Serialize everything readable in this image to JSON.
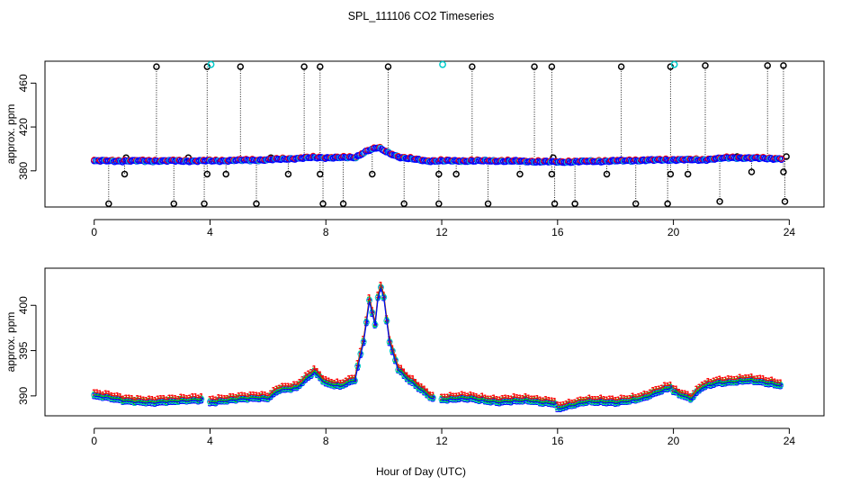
{
  "chart_data": [
    {
      "type": "scatter",
      "title": "SPL_111106  CO2 Timeseries",
      "ylabel": "approx. ppm",
      "xlabel": "",
      "xlim": [
        -1.7,
        25.2
      ],
      "ylim": [
        347,
        480
      ],
      "x_ticks": [
        0,
        4,
        8,
        12,
        16,
        20,
        24
      ],
      "y_ticks": [
        380,
        420,
        460
      ],
      "baseline": [
        {
          "x": 0.0,
          "y": 389
        },
        {
          "x": 2.0,
          "y": 389
        },
        {
          "x": 4.0,
          "y": 389
        },
        {
          "x": 6.0,
          "y": 390
        },
        {
          "x": 7.5,
          "y": 392
        },
        {
          "x": 9.0,
          "y": 392
        },
        {
          "x": 9.4,
          "y": 398
        },
        {
          "x": 9.8,
          "y": 401
        },
        {
          "x": 10.2,
          "y": 396
        },
        {
          "x": 10.6,
          "y": 392
        },
        {
          "x": 11.5,
          "y": 389
        },
        {
          "x": 14.0,
          "y": 389
        },
        {
          "x": 16.0,
          "y": 388
        },
        {
          "x": 18.0,
          "y": 389
        },
        {
          "x": 19.8,
          "y": 390
        },
        {
          "x": 21.0,
          "y": 390
        },
        {
          "x": 22.0,
          "y": 392
        },
        {
          "x": 23.7,
          "y": 391
        }
      ],
      "spikes": [
        {
          "x": 2.15,
          "y": 475
        },
        {
          "x": 3.9,
          "y": 475
        },
        {
          "x": 5.05,
          "y": 475
        },
        {
          "x": 7.25,
          "y": 475
        },
        {
          "x": 7.8,
          "y": 475
        },
        {
          "x": 10.15,
          "y": 475
        },
        {
          "x": 13.05,
          "y": 475
        },
        {
          "x": 15.2,
          "y": 475
        },
        {
          "x": 15.8,
          "y": 475
        },
        {
          "x": 18.2,
          "y": 475
        },
        {
          "x": 19.9,
          "y": 475
        },
        {
          "x": 21.1,
          "y": 476
        },
        {
          "x": 23.25,
          "y": 476
        },
        {
          "x": 23.8,
          "y": 476
        },
        {
          "x": 0.5,
          "y": 350
        },
        {
          "x": 2.75,
          "y": 350
        },
        {
          "x": 3.8,
          "y": 350
        },
        {
          "x": 5.6,
          "y": 350
        },
        {
          "x": 7.9,
          "y": 350
        },
        {
          "x": 8.6,
          "y": 350
        },
        {
          "x": 10.7,
          "y": 350
        },
        {
          "x": 11.9,
          "y": 350
        },
        {
          "x": 13.6,
          "y": 350
        },
        {
          "x": 15.9,
          "y": 350
        },
        {
          "x": 16.6,
          "y": 350
        },
        {
          "x": 18.7,
          "y": 350
        },
        {
          "x": 19.8,
          "y": 350
        },
        {
          "x": 21.6,
          "y": 352
        },
        {
          "x": 23.85,
          "y": 352
        },
        {
          "x": 1.05,
          "y": 377
        },
        {
          "x": 3.9,
          "y": 377
        },
        {
          "x": 4.55,
          "y": 377
        },
        {
          "x": 6.7,
          "y": 377
        },
        {
          "x": 7.8,
          "y": 377
        },
        {
          "x": 9.6,
          "y": 377
        },
        {
          "x": 11.9,
          "y": 377
        },
        {
          "x": 12.5,
          "y": 377
        },
        {
          "x": 14.7,
          "y": 377
        },
        {
          "x": 15.8,
          "y": 377
        },
        {
          "x": 17.7,
          "y": 377
        },
        {
          "x": 19.9,
          "y": 377
        },
        {
          "x": 20.5,
          "y": 377
        },
        {
          "x": 22.7,
          "y": 379
        },
        {
          "x": 23.8,
          "y": 379
        },
        {
          "x": 1.1,
          "y": 392
        },
        {
          "x": 3.25,
          "y": 392
        },
        {
          "x": 6.1,
          "y": 392
        },
        {
          "x": 15.85,
          "y": 392
        },
        {
          "x": 22.2,
          "y": 393
        },
        {
          "x": 23.9,
          "y": 393
        }
      ],
      "cyan_markers": [
        {
          "x": 4.0,
          "y": 477
        },
        {
          "x": 12.0,
          "y": 477
        },
        {
          "x": 20.0,
          "y": 477
        }
      ]
    },
    {
      "type": "scatter",
      "ylabel": "approx. ppm",
      "xlabel": "Hour of Day (UTC)",
      "xlim": [
        -1.7,
        25.2
      ],
      "ylim": [
        387.8,
        404.1
      ],
      "x_ticks": [
        0,
        4,
        8,
        12,
        16,
        20,
        24
      ],
      "y_ticks": [
        390,
        395,
        400
      ],
      "series_markers": [
        "1",
        "2",
        "3"
      ],
      "series_colors": [
        "#ff0000",
        "#00cc00",
        "#0000ff"
      ],
      "segments": [
        {
          "start": 0.0,
          "end": 3.7,
          "points": [
            {
              "x": 0.0,
              "y": 390.1
            },
            {
              "x": 1.0,
              "y": 389.6
            },
            {
              "x": 2.0,
              "y": 389.3
            },
            {
              "x": 3.0,
              "y": 389.6
            },
            {
              "x": 3.7,
              "y": 389.6
            }
          ]
        },
        {
          "start": 4.0,
          "end": 11.7,
          "points": [
            {
              "x": 4.0,
              "y": 389.3
            },
            {
              "x": 5.0,
              "y": 389.8
            },
            {
              "x": 6.0,
              "y": 389.8
            },
            {
              "x": 6.4,
              "y": 390.8
            },
            {
              "x": 7.0,
              "y": 391.0
            },
            {
              "x": 7.6,
              "y": 392.7
            },
            {
              "x": 8.0,
              "y": 391.5
            },
            {
              "x": 8.5,
              "y": 391.2
            },
            {
              "x": 9.0,
              "y": 391.8
            },
            {
              "x": 9.3,
              "y": 396.0
            },
            {
              "x": 9.5,
              "y": 400.5
            },
            {
              "x": 9.7,
              "y": 398.0
            },
            {
              "x": 9.85,
              "y": 402.5
            },
            {
              "x": 10.0,
              "y": 401.0
            },
            {
              "x": 10.2,
              "y": 396.0
            },
            {
              "x": 10.5,
              "y": 393.0
            },
            {
              "x": 10.8,
              "y": 392.0
            },
            {
              "x": 11.2,
              "y": 391.0
            },
            {
              "x": 11.7,
              "y": 389.8
            }
          ]
        },
        {
          "start": 12.0,
          "end": 15.9,
          "points": [
            {
              "x": 12.0,
              "y": 389.7
            },
            {
              "x": 13.0,
              "y": 389.8
            },
            {
              "x": 14.0,
              "y": 389.4
            },
            {
              "x": 15.0,
              "y": 389.6
            },
            {
              "x": 15.9,
              "y": 389.2
            }
          ]
        },
        {
          "start": 16.0,
          "end": 19.9,
          "points": [
            {
              "x": 16.0,
              "y": 388.6
            },
            {
              "x": 17.0,
              "y": 389.5
            },
            {
              "x": 18.0,
              "y": 389.3
            },
            {
              "x": 19.0,
              "y": 389.9
            },
            {
              "x": 19.9,
              "y": 391.0
            }
          ]
        },
        {
          "start": 20.0,
          "end": 23.7,
          "points": [
            {
              "x": 20.0,
              "y": 390.6
            },
            {
              "x": 20.6,
              "y": 389.8
            },
            {
              "x": 21.0,
              "y": 391.0
            },
            {
              "x": 21.5,
              "y": 391.5
            },
            {
              "x": 22.5,
              "y": 391.8
            },
            {
              "x": 23.0,
              "y": 391.6
            },
            {
              "x": 23.7,
              "y": 391.3
            }
          ]
        }
      ]
    }
  ]
}
